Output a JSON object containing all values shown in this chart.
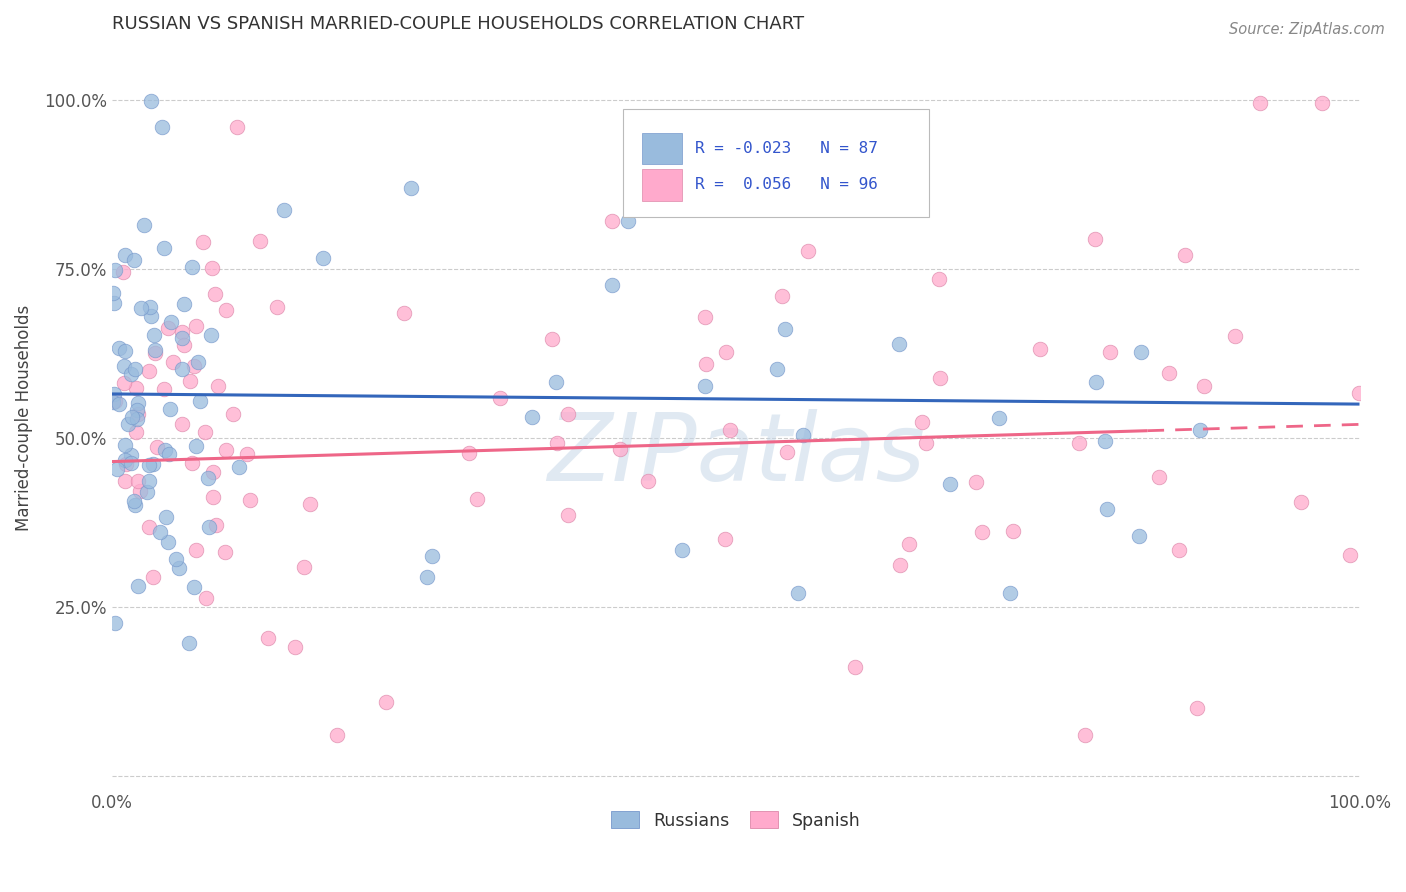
{
  "title": "RUSSIAN VS SPANISH MARRIED-COUPLE HOUSEHOLDS CORRELATION CHART",
  "source": "Source: ZipAtlas.com",
  "ylabel": "Married-couple Households",
  "russian_color": "#99BBDD",
  "russian_edge_color": "#7799CC",
  "spanish_color": "#FFAACC",
  "spanish_edge_color": "#DD88AA",
  "russian_R": -0.023,
  "russian_N": 87,
  "spanish_R": 0.056,
  "spanish_N": 96,
  "trend_russian_color": "#3366BB",
  "trend_spanish_color": "#EE6688",
  "watermark": "ZIPatlas",
  "watermark_color": "#C8D8E8",
  "xlim": [
    0.0,
    1.0
  ],
  "ylim": [
    -0.02,
    1.08
  ],
  "grid_color": "#CCCCCC",
  "title_fontsize": 13,
  "title_color": "#333333",
  "source_color": "#888888",
  "tick_label_color": "#555555",
  "legend_text_color": "#3355CC"
}
